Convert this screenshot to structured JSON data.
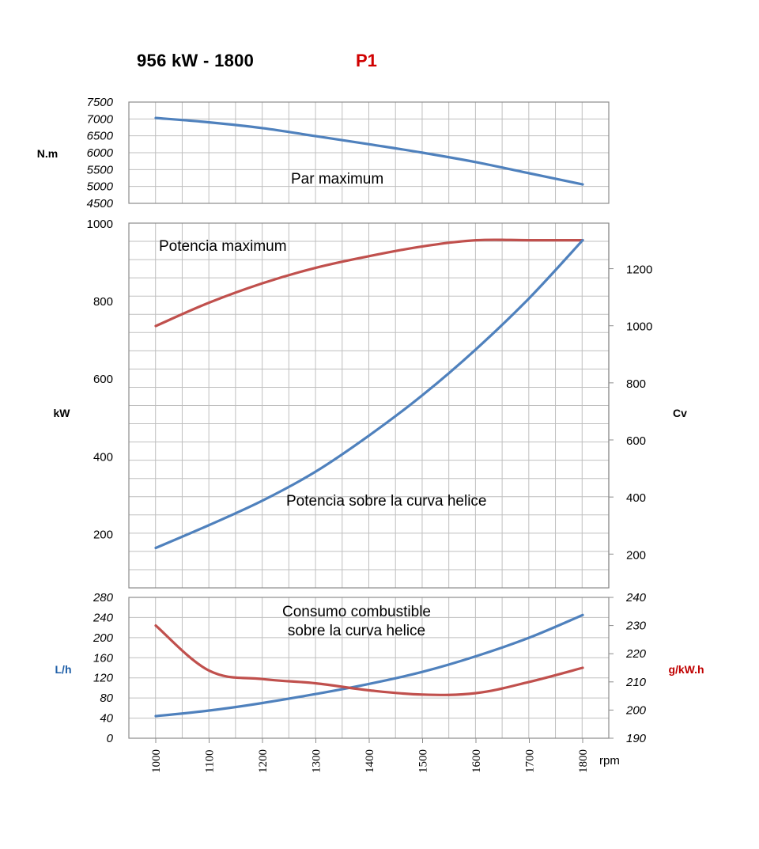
{
  "header": {
    "title": "956 kW - 1800",
    "tag": "P1"
  },
  "colors": {
    "blue": "#4f81bd",
    "red": "#c0504d",
    "grid": "#bfbfbf",
    "red_text": "#c00000",
    "blue_text": "#1f5fa8"
  },
  "chart_data": [
    {
      "type": "line",
      "panel": "torque",
      "x": [
        1000,
        1100,
        1200,
        1300,
        1400,
        1500,
        1600,
        1700,
        1800
      ],
      "series": [
        {
          "values": [
            7030,
            6900,
            6730,
            6490,
            6250,
            6000,
            5720,
            5390,
            5060
          ]
        }
      ],
      "ylabel": "N.m",
      "ylim": [
        4500,
        7500
      ],
      "yticks": [
        "4500",
        "5000",
        "5500",
        "6000",
        "6500",
        "7000",
        "7500"
      ],
      "annotation": "Par maximum",
      "grid": true
    },
    {
      "type": "line",
      "panel": "power",
      "x": [
        1000,
        1100,
        1200,
        1300,
        1400,
        1500,
        1600,
        1700,
        1800
      ],
      "series": [
        {
          "values": [
            735,
            795,
            845,
            885,
            915,
            940,
            956,
            956,
            956
          ]
        },
        {
          "values": [
            163,
            222,
            285,
            360,
            453,
            557,
            675,
            807,
            956
          ]
        }
      ],
      "ylabel": "kW",
      "ylim": [
        60,
        1000
      ],
      "yticks": [
        "200",
        "400",
        "600",
        "800",
        "1000"
      ],
      "y2label": "Cv",
      "y2ticks": [
        "200",
        "400",
        "600",
        "800",
        "1000",
        "1200"
      ],
      "annotations": [
        "Potencia maximum",
        "Potencia sobre la curva helice"
      ],
      "grid": true
    },
    {
      "type": "line",
      "panel": "consumption",
      "x": [
        1000,
        1100,
        1200,
        1300,
        1400,
        1500,
        1600,
        1700,
        1800
      ],
      "xticks": [
        "1000",
        "1100",
        "1200",
        "1300",
        "1400",
        "1500",
        "1600",
        "1700",
        "1800"
      ],
      "xlabel": "rpm",
      "series": [
        {
          "axis": "left",
          "values": [
            44,
            55,
            70,
            88,
            108,
            132,
            163,
            200,
            245
          ]
        },
        {
          "axis": "right",
          "values": [
            230,
            214,
            211,
            209.5,
            207,
            205.5,
            206,
            210,
            215
          ]
        }
      ],
      "ylabel": "L/h",
      "ylim": [
        0,
        280
      ],
      "yticks": [
        "0",
        "40",
        "80",
        "120",
        "160",
        "200",
        "240",
        "280"
      ],
      "y2label": "g/kW.h",
      "y2lim": [
        190,
        240
      ],
      "y2ticks": [
        "190",
        "200",
        "210",
        "220",
        "230",
        "240"
      ],
      "annotation": [
        "Consumo combustible",
        "sobre la curva helice"
      ],
      "grid": true
    }
  ]
}
